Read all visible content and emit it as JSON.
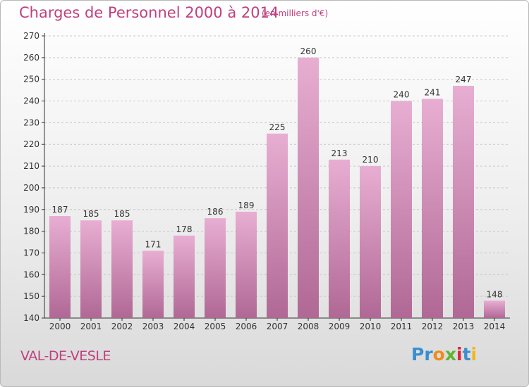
{
  "title": "Charges de Personnel 2000 à 2014",
  "subtitle": "(en milliers d'€)",
  "place_name": "VAL-DE-VESLE",
  "logo": {
    "text": "Proxiti",
    "letters": [
      {
        "char": "P",
        "color": "#3a8fd0"
      },
      {
        "char": "r",
        "color": "#3a8fd0"
      },
      {
        "char": "o",
        "color": "#f08a1c"
      },
      {
        "char": "x",
        "color": "#5cb531"
      },
      {
        "char": "i",
        "color": "#d9263b"
      },
      {
        "char": "t",
        "color": "#3a8fd0"
      },
      {
        "char": "i",
        "color": "#f0b81c"
      }
    ]
  },
  "colors": {
    "accent": "#c0407f",
    "bar_light": "#e8aed2",
    "bar_dark": "#b06895",
    "axis": "#333333"
  },
  "chart_data": {
    "type": "bar",
    "categories": [
      "2000",
      "2001",
      "2002",
      "2003",
      "2004",
      "2005",
      "2006",
      "2007",
      "2008",
      "2009",
      "2010",
      "2011",
      "2012",
      "2013",
      "2014"
    ],
    "values": [
      187,
      185,
      185,
      171,
      178,
      186,
      189,
      225,
      260,
      213,
      210,
      240,
      241,
      247,
      148
    ],
    "title": "Charges de Personnel 2000 à 2014",
    "ylim": [
      140,
      270
    ],
    "yticks": [
      140,
      150,
      160,
      170,
      180,
      190,
      200,
      210,
      220,
      230,
      240,
      250,
      260,
      270
    ],
    "grid": true,
    "legend": false
  }
}
